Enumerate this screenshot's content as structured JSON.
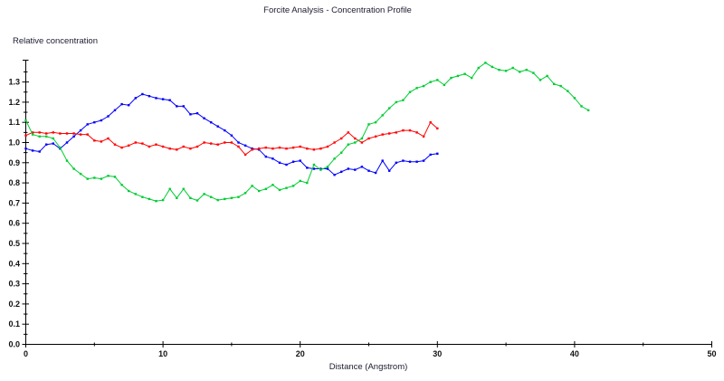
{
  "title": "Forcite Analysis - Concentration Profile",
  "y_axis_label": "Relative concentration",
  "x_axis_label": "Distance (Angstrom)",
  "axis_color": "#000000",
  "background_color": "#ffffff",
  "chart_data": {
    "type": "line",
    "title": "Forcite Analysis - Concentration Profile",
    "xlabel": "Distance (Angstrom)",
    "ylabel": "Relative concentration",
    "xlim": [
      0,
      50
    ],
    "ylim": [
      0,
      1.4
    ],
    "x_major_tick_step": 10,
    "x_minor_tick_step": 5,
    "y_major_tick_step": 0.1,
    "y_minor_tick_step": 0.05,
    "x_tick_labels": [
      "0",
      "10",
      "20",
      "30",
      "40",
      "50"
    ],
    "y_tick_labels": [
      "0.0",
      "0.1",
      "0.2",
      "0.3",
      "0.4",
      "0.5",
      "0.6",
      "0.7",
      "0.8",
      "0.9",
      "1.0",
      "1.1",
      "1.2",
      "1.3"
    ],
    "grid": false,
    "legend_position": "none",
    "marker": "square",
    "series": [
      {
        "name": "blue",
        "color": "#0000ff",
        "x_start": 0,
        "x_step": 0.5,
        "values": [
          0.97,
          0.96,
          0.955,
          0.99,
          0.995,
          0.97,
          1.0,
          1.03,
          1.06,
          1.09,
          1.1,
          1.11,
          1.13,
          1.16,
          1.19,
          1.185,
          1.22,
          1.24,
          1.23,
          1.22,
          1.215,
          1.21,
          1.18,
          1.18,
          1.14,
          1.145,
          1.12,
          1.1,
          1.08,
          1.06,
          1.035,
          1.0,
          0.985,
          0.97,
          0.965,
          0.93,
          0.92,
          0.9,
          0.89,
          0.905,
          0.91,
          0.875,
          0.87,
          0.87,
          0.87,
          0.84,
          0.855,
          0.87,
          0.865,
          0.88,
          0.86,
          0.85,
          0.91,
          0.86,
          0.9,
          0.91,
          0.905,
          0.905,
          0.91,
          0.94,
          0.945
        ]
      },
      {
        "name": "red",
        "color": "#ff0000",
        "x_start": 0,
        "x_step": 0.5,
        "values": [
          1.035,
          1.05,
          1.05,
          1.045,
          1.05,
          1.045,
          1.045,
          1.045,
          1.04,
          1.04,
          1.01,
          1.005,
          1.02,
          0.99,
          0.975,
          0.985,
          1.0,
          0.995,
          0.98,
          0.99,
          0.98,
          0.97,
          0.965,
          0.98,
          0.97,
          0.98,
          1.0,
          0.995,
          0.99,
          1.0,
          1.0,
          0.98,
          0.94,
          0.965,
          0.97,
          0.975,
          0.97,
          0.975,
          0.97,
          0.975,
          0.98,
          0.97,
          0.965,
          0.97,
          0.98,
          1.0,
          1.02,
          1.05,
          1.02,
          1.0,
          1.02,
          1.03,
          1.04,
          1.045,
          1.05,
          1.06,
          1.06,
          1.05,
          1.03,
          1.1,
          1.07
        ]
      },
      {
        "name": "green",
        "color": "#00cc33",
        "x_start": 0,
        "x_step": 0.5,
        "values": [
          1.11,
          1.04,
          1.03,
          1.03,
          1.02,
          0.975,
          0.91,
          0.87,
          0.845,
          0.82,
          0.825,
          0.82,
          0.835,
          0.83,
          0.79,
          0.76,
          0.745,
          0.73,
          0.72,
          0.71,
          0.715,
          0.77,
          0.725,
          0.77,
          0.725,
          0.713,
          0.745,
          0.73,
          0.715,
          0.72,
          0.725,
          0.73,
          0.75,
          0.785,
          0.76,
          0.77,
          0.79,
          0.765,
          0.775,
          0.785,
          0.81,
          0.8,
          0.89,
          0.865,
          0.88,
          0.92,
          0.95,
          0.99,
          1.0,
          1.02,
          1.09,
          1.1,
          1.135,
          1.17,
          1.2,
          1.21,
          1.25,
          1.27,
          1.28,
          1.3,
          1.31,
          1.285,
          1.32,
          1.33,
          1.34,
          1.32,
          1.37,
          1.395,
          1.375,
          1.36,
          1.355,
          1.37,
          1.35,
          1.36,
          1.345,
          1.31,
          1.33,
          1.29,
          1.28,
          1.255,
          1.22,
          1.18,
          1.16
        ]
      }
    ]
  }
}
